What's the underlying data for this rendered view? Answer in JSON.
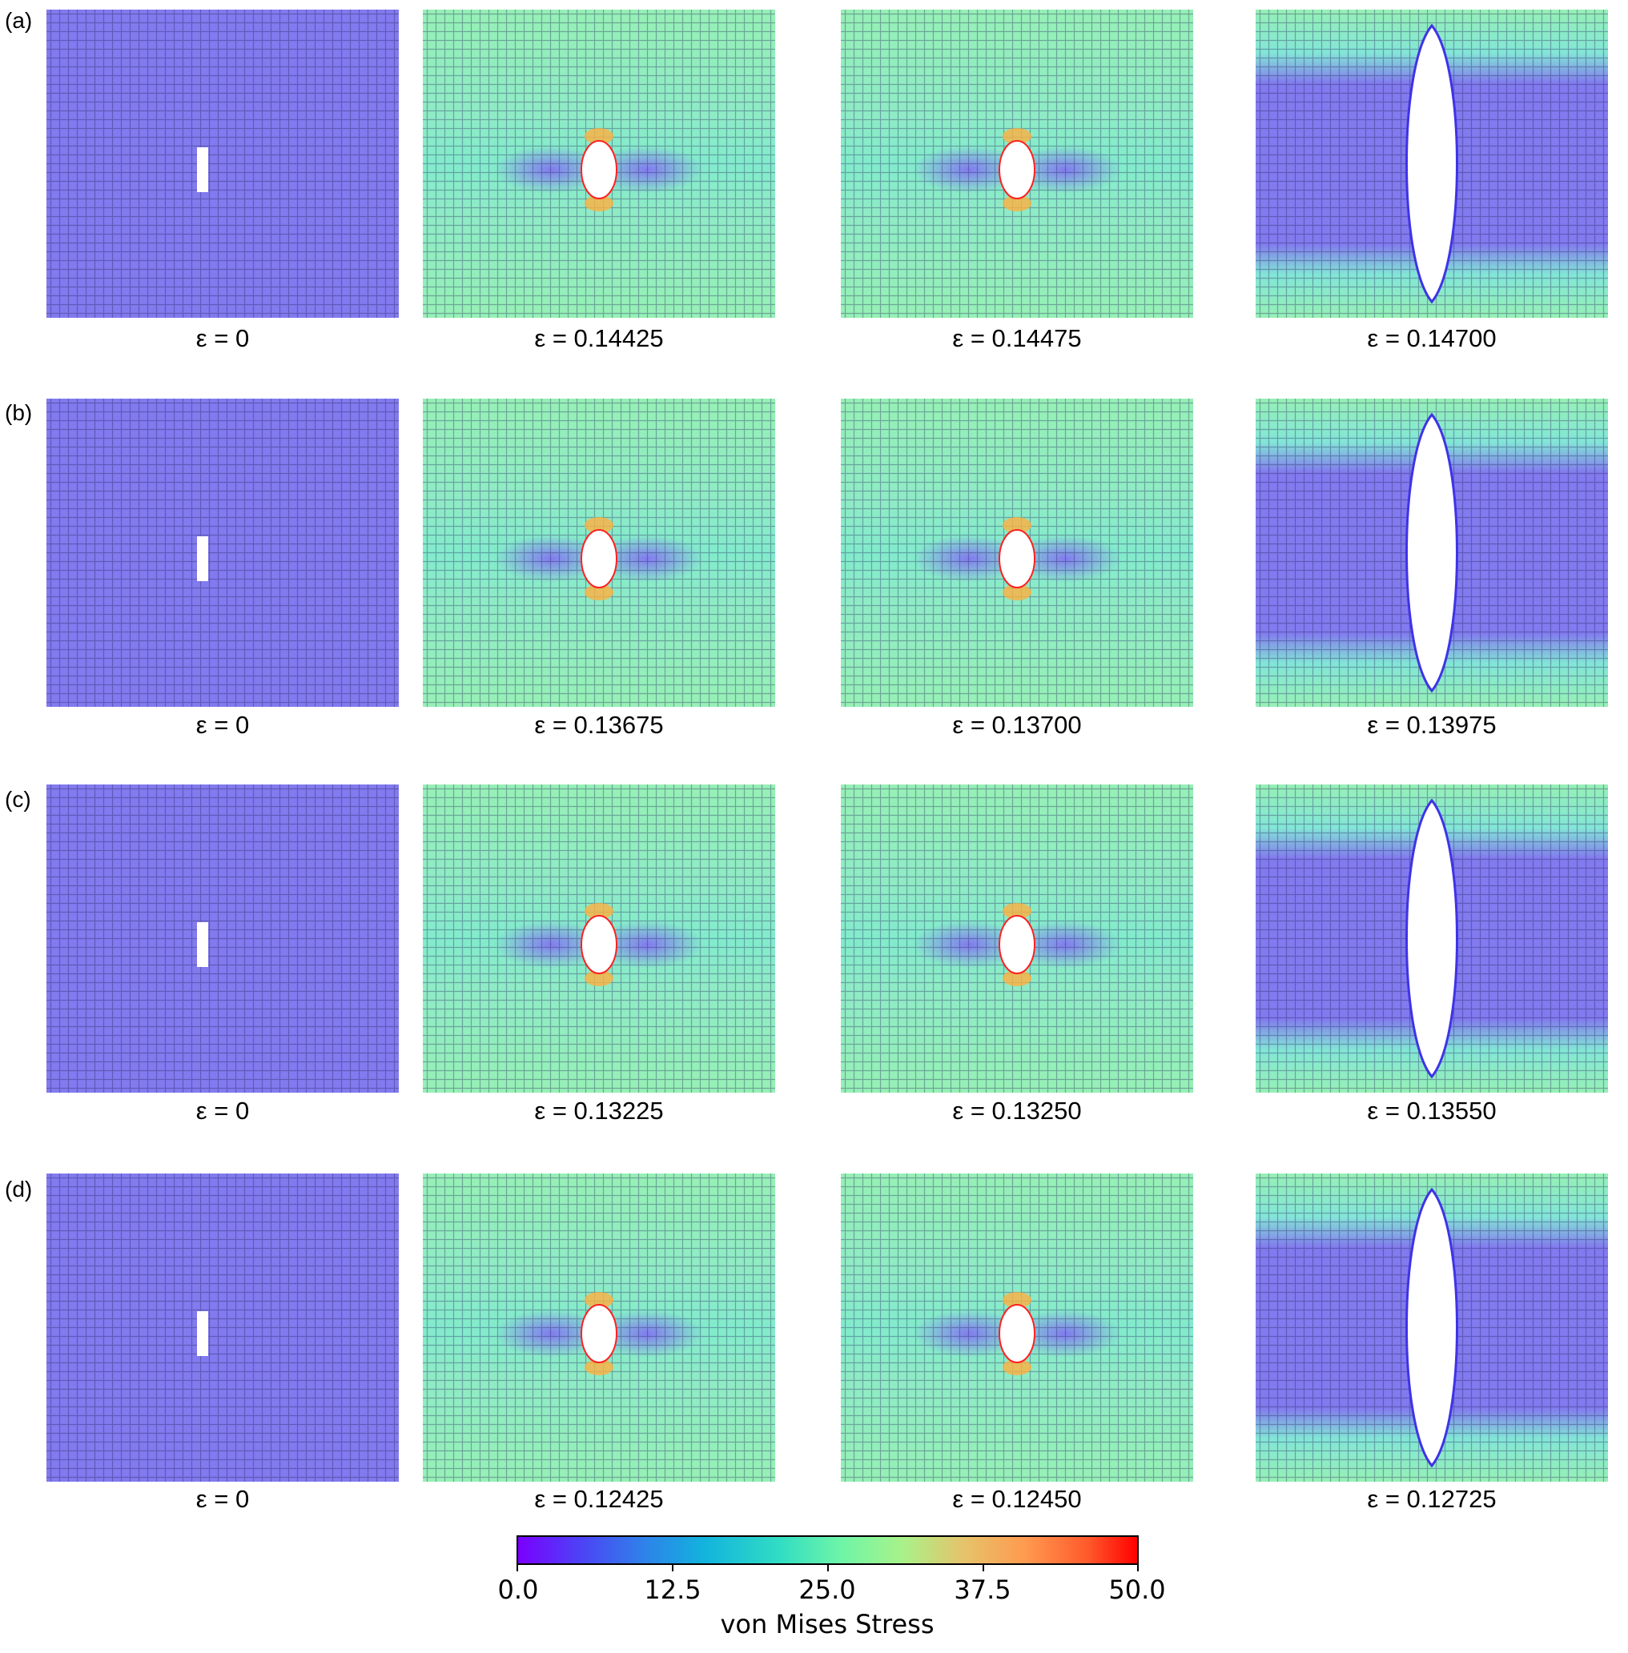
{
  "figure": {
    "rows": [
      {
        "label": "(a)",
        "strains": [
          "ε = 0",
          "ε = 0.14425",
          "ε = 0.14475",
          "ε = 0.14700"
        ]
      },
      {
        "label": "(b)",
        "strains": [
          "ε = 0",
          "ε = 0.13675",
          "ε = 0.13700",
          "ε = 0.13975"
        ]
      },
      {
        "label": "(c)",
        "strains": [
          "ε = 0",
          "ε = 0.13225",
          "ε = 0.13250",
          "ε = 0.13550"
        ]
      },
      {
        "label": "(d)",
        "strains": [
          "ε = 0",
          "ε = 0.12425",
          "ε = 0.12450",
          "ε = 0.12725"
        ]
      }
    ],
    "panel_states": [
      "initial-notch",
      "pre-fracture-hole",
      "pre-fracture-hole",
      "fractured"
    ],
    "colorbar": {
      "label": "von Mises Stress",
      "ticks": [
        "0.0",
        "12.5",
        "25.0",
        "37.5",
        "50.0"
      ],
      "min": 0,
      "max": 50
    },
    "colors": {
      "low": "#3f33e6",
      "mid": "#3fe0b0",
      "high": "#ff2020",
      "band": "#5ee88e"
    }
  }
}
